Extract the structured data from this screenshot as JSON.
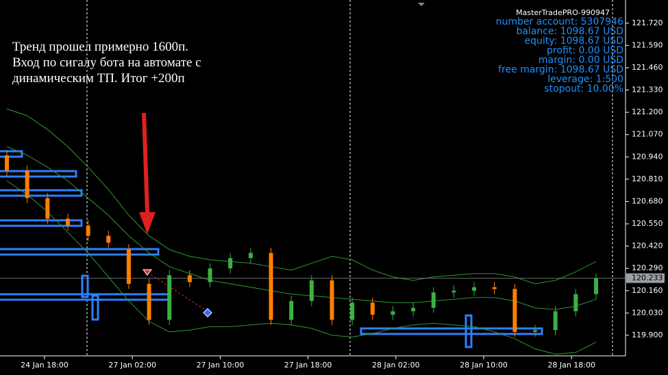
{
  "chart_data": {
    "type": "candlestick",
    "annotation": [
      "Тренд прошел примерно 1600п.",
      "Вход по сигалу бота на автомате с",
      "динамическим ТП.  Итог +200п"
    ],
    "info_panel": [
      "MasterTradePRO-990947",
      "number account: 5307946",
      "balance: 1098.67 USD",
      "equity: 1098.67 USD",
      "profit: 0.00 USD",
      "margin: 0.00 USD",
      "free margin: 1098.67 USD",
      "leverage: 1:500",
      "stopout: 10.00%"
    ],
    "x_labels": [
      "24 Jan 18:00",
      "27 Jan 02:00",
      "27 Jan 10:00",
      "27 Jan 18:00",
      "28 Jan 02:00",
      "28 Jan 10:00",
      "28 Jan 18:00"
    ],
    "open": [
      120.95,
      120.86,
      120.7,
      120.58,
      120.54,
      120.48,
      120.4,
      120.2,
      119.99,
      120.25,
      120.21,
      120.29,
      120.35,
      120.38,
      119.99,
      120.1,
      120.22,
      119.99,
      120.09,
      120.02,
      120.04,
      120.06,
      120.15,
      120.16,
      120.18,
      120.17,
      119.92,
      119.93,
      120.04,
      120.14
    ],
    "high": [
      120.98,
      120.89,
      120.73,
      120.61,
      120.57,
      120.51,
      120.43,
      120.23,
      120.28,
      120.28,
      120.32,
      120.38,
      120.41,
      120.41,
      120.13,
      120.25,
      120.25,
      120.12,
      120.12,
      120.07,
      120.09,
      120.18,
      120.19,
      120.21,
      120.21,
      120.2,
      119.96,
      120.07,
      120.17,
      120.26
    ],
    "low": [
      120.83,
      120.67,
      120.55,
      120.51,
      120.45,
      120.41,
      120.17,
      119.96,
      119.96,
      120.18,
      120.18,
      120.26,
      120.32,
      119.96,
      119.96,
      120.07,
      119.96,
      119.96,
      119.99,
      119.99,
      120.01,
      120.03,
      120.12,
      120.13,
      120.14,
      119.89,
      119.89,
      119.9,
      120.01,
      120.11
    ],
    "close": [
      120.86,
      120.7,
      120.58,
      120.54,
      120.48,
      120.44,
      120.2,
      119.99,
      120.25,
      120.21,
      120.29,
      120.35,
      120.38,
      119.99,
      120.1,
      120.22,
      119.99,
      120.09,
      120.02,
      120.04,
      120.06,
      120.15,
      120.16,
      120.18,
      120.17,
      119.92,
      119.93,
      120.04,
      120.14,
      120.233
    ],
    "bands": {
      "color": "#2e9a2e",
      "upper": [
        121.22,
        121.18,
        121.1,
        121.0,
        120.88,
        120.75,
        120.6,
        120.48,
        120.4,
        120.36,
        120.34,
        120.33,
        120.32,
        120.3,
        120.28,
        120.32,
        120.36,
        120.34,
        120.28,
        120.24,
        120.22,
        120.24,
        120.25,
        120.26,
        120.26,
        120.24,
        120.2,
        120.22,
        120.27,
        120.33
      ],
      "middle": [
        121.0,
        120.95,
        120.88,
        120.8,
        120.7,
        120.6,
        120.48,
        120.38,
        120.3,
        120.26,
        120.22,
        120.2,
        120.18,
        120.16,
        120.14,
        120.13,
        120.12,
        120.11,
        120.1,
        120.09,
        120.09,
        120.1,
        120.11,
        120.12,
        120.12,
        120.1,
        120.06,
        120.05,
        120.07,
        120.11
      ],
      "lower": [
        120.8,
        120.72,
        120.62,
        120.5,
        120.38,
        120.24,
        120.1,
        119.98,
        119.92,
        119.93,
        119.95,
        119.95,
        119.96,
        119.97,
        119.96,
        119.94,
        119.9,
        119.89,
        119.91,
        119.94,
        119.96,
        119.97,
        119.96,
        119.95,
        119.92,
        119.88,
        119.82,
        119.79,
        119.8,
        119.86
      ]
    },
    "up_color": "#3cb043",
    "down_color": "#ff7f00",
    "last_price": 120.233,
    "ylim": [
      119.82,
      121.775
    ],
    "yticks": [
      {
        "value": 121.72,
        "label": "121.720"
      },
      {
        "value": 121.59,
        "label": "121.590"
      },
      {
        "value": 121.46,
        "label": "121.460"
      },
      {
        "value": 121.33,
        "label": "121.330"
      },
      {
        "value": 121.2,
        "label": "121.200"
      },
      {
        "value": 121.07,
        "label": "121.070"
      },
      {
        "value": 120.94,
        "label": "120.940"
      },
      {
        "value": 120.81,
        "label": "120.810"
      },
      {
        "value": 120.68,
        "label": "120.680"
      },
      {
        "value": 120.55,
        "label": "120.550"
      },
      {
        "value": 120.42,
        "label": "120.420"
      },
      {
        "value": 120.29,
        "label": "120.290"
      },
      {
        "value": 120.16,
        "label": "120.160"
      },
      {
        "value": 120.03,
        "label": "120.030"
      },
      {
        "value": 119.9,
        "label": "119.900"
      }
    ]
  }
}
